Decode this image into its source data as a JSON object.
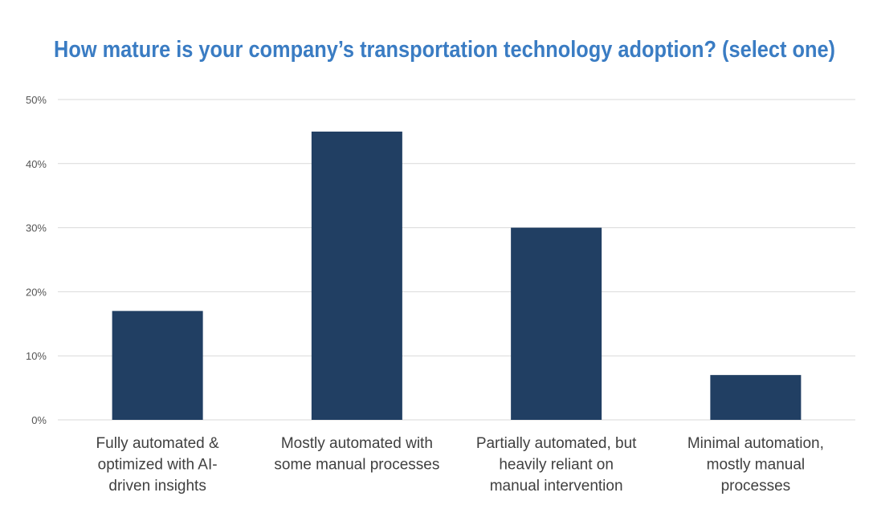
{
  "chart_data": {
    "type": "bar",
    "title": "How mature is your company’s transportation technology adoption? (select one)",
    "categories": [
      [
        "Fully automated &",
        "optimized with AI-",
        "driven insights"
      ],
      [
        "Mostly automated with",
        "some manual processes"
      ],
      [
        "Partially automated, but",
        "heavily reliant on",
        "manual intervention"
      ],
      [
        "Minimal automation,",
        "mostly manual",
        "processes"
      ]
    ],
    "values": [
      17,
      45,
      30,
      7
    ],
    "unit": "%",
    "ylim": [
      0,
      50
    ],
    "yticks": [
      "0%",
      "10%",
      "20%",
      "30%",
      "40%",
      "50%"
    ],
    "grid": true,
    "legend": "none",
    "colors": {
      "bar": "#213f63",
      "title": "#3a7cc3",
      "grid": "#d9d9d9"
    }
  }
}
